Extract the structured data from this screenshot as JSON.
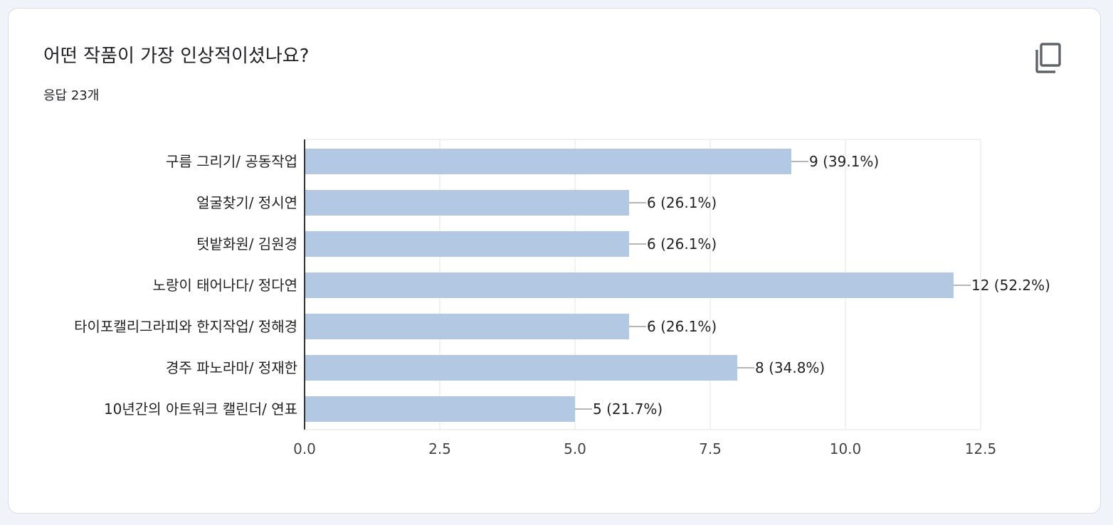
{
  "card": {
    "title": "어떤 작품이 가장 인상적이셨나요?",
    "response_count": "응답 23개",
    "copy_icon": "copy-icon"
  },
  "colors": {
    "bar": "#b3c9e3",
    "axis": "#333333",
    "grid": "#e6e6e6",
    "leader": "#9e9e9e",
    "text": "#222222"
  },
  "chart_data": {
    "type": "bar",
    "orientation": "horizontal",
    "categories": [
      "구름 그리기/ 공동작업",
      "얼굴찾기/ 정시연",
      "텃밭화원/ 김원경",
      "노랑이 태어나다/ 정다연",
      "타이포캘리그라피와 한지작업/ 정해경",
      "경주 파노라마/ 정재한",
      "10년간의 아트워크 캘린더/ 연표"
    ],
    "values": [
      9,
      6,
      6,
      12,
      6,
      8,
      5
    ],
    "labels": [
      "9 (39.1%)",
      "6 (26.1%)",
      "6 (26.1%)",
      "12 (52.2%)",
      "6 (26.1%)",
      "8 (34.8%)",
      "5 (21.7%)"
    ],
    "xlim": [
      0,
      12.5
    ],
    "xticks": [
      "0.0",
      "2.5",
      "5.0",
      "7.5",
      "10.0",
      "12.5"
    ],
    "grid": true
  }
}
